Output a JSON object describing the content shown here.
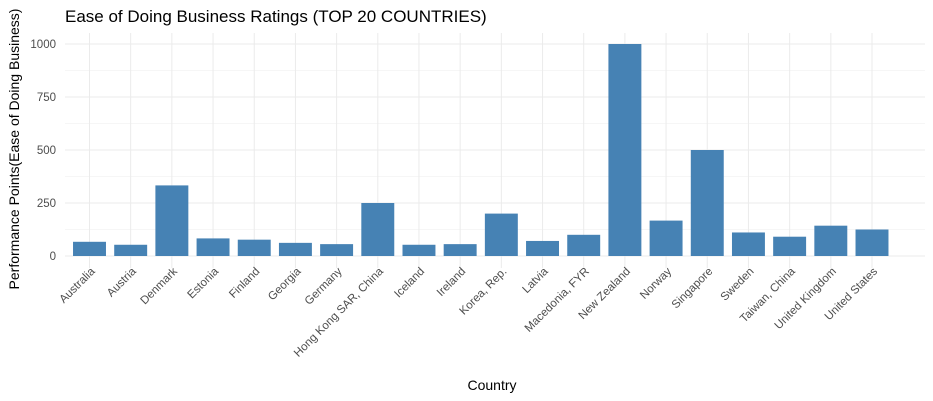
{
  "chart_data": {
    "type": "bar",
    "title": "Ease of Doing Business Ratings (TOP 20 COUNTRIES)",
    "xlabel": "Country",
    "ylabel": "Performance Points(Ease of Doing Business)",
    "categories": [
      "Australia",
      "Austria",
      "Denmark",
      "Estonia",
      "Finland",
      "Georgia",
      "Germany",
      "Hong Kong SAR, China",
      "Iceland",
      "Ireland",
      "Korea, Rep.",
      "Latvia",
      "Macedonia, FYR",
      "New Zealand",
      "Norway",
      "Singapore",
      "Sweden",
      "Taiwan, China",
      "United Kingdom",
      "United States"
    ],
    "values": [
      67,
      53,
      333,
      83,
      77,
      62,
      56,
      250,
      53,
      56,
      200,
      71,
      100,
      1000,
      167,
      500,
      111,
      91,
      143,
      125
    ],
    "ylim": [
      0,
      1050
    ],
    "yticks": [
      0,
      250,
      500,
      750,
      1000
    ],
    "ytick_labels": [
      "0",
      "250",
      "500",
      "750",
      "1000"
    ],
    "bar_color": "#4682B4",
    "grid": true,
    "legend": "none"
  }
}
